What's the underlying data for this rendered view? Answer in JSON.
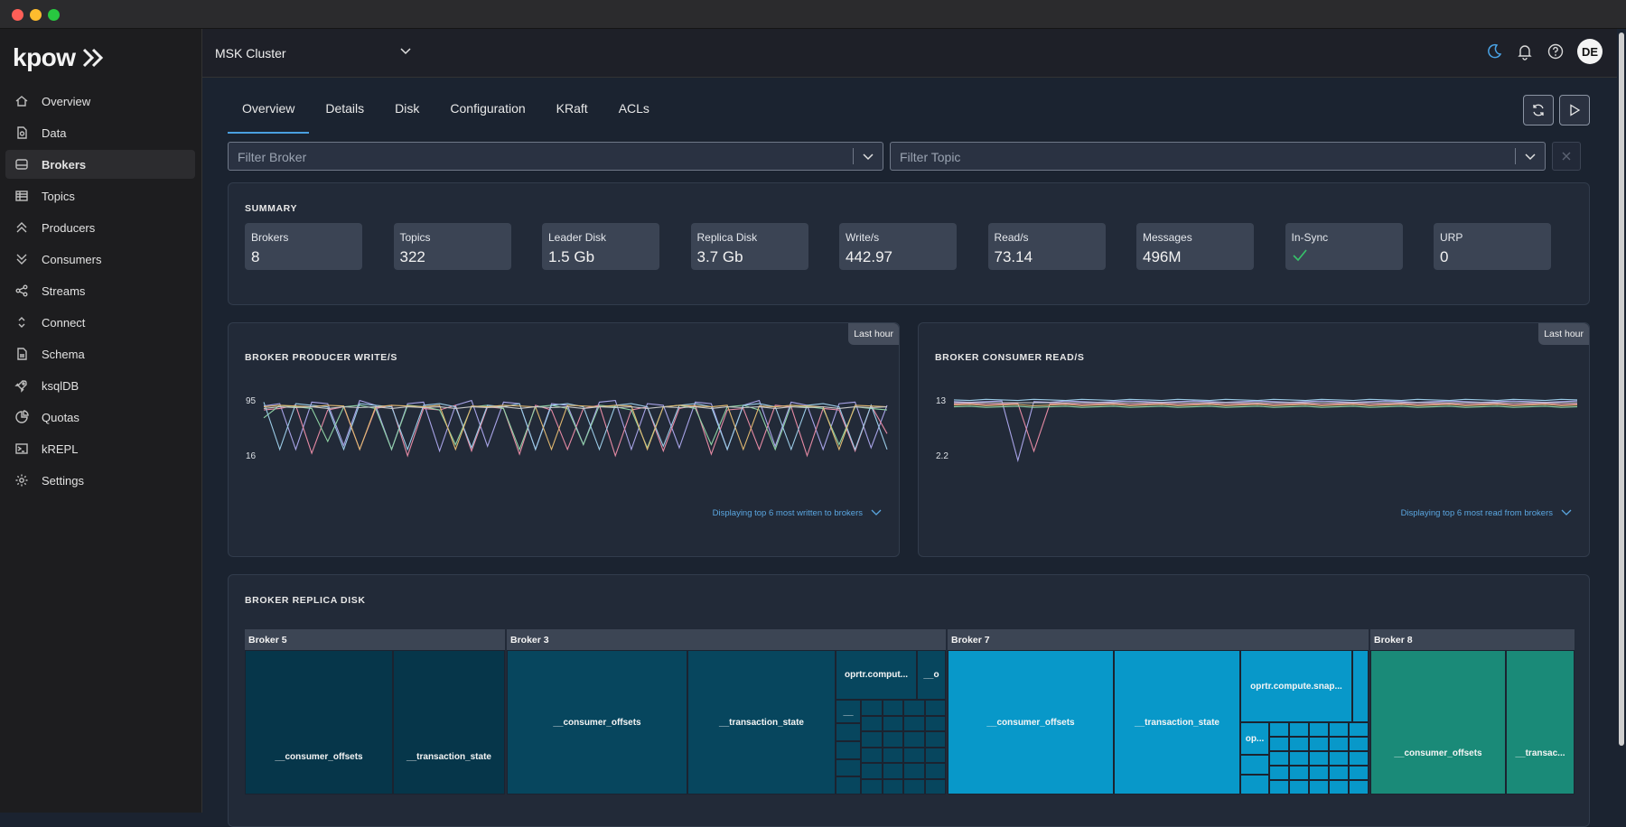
{
  "window": {
    "controls": [
      "close",
      "minimize",
      "maximize"
    ]
  },
  "app": {
    "logo": "kpow"
  },
  "sidebar": {
    "items": [
      {
        "label": "Overview",
        "icon": "home-icon"
      },
      {
        "label": "Data",
        "icon": "document-icon"
      },
      {
        "label": "Brokers",
        "icon": "server-icon",
        "active": true
      },
      {
        "label": "Topics",
        "icon": "table-icon"
      },
      {
        "label": "Producers",
        "icon": "chevrons-up-icon"
      },
      {
        "label": "Consumers",
        "icon": "chevrons-down-icon"
      },
      {
        "label": "Streams",
        "icon": "share-icon"
      },
      {
        "label": "Connect",
        "icon": "chevron-updown-icon"
      },
      {
        "label": "Schema",
        "icon": "file-icon"
      },
      {
        "label": "ksqlDB",
        "icon": "rocket-icon"
      },
      {
        "label": "Quotas",
        "icon": "pie-icon"
      },
      {
        "label": "kREPL",
        "icon": "terminal-icon"
      },
      {
        "label": "Settings",
        "icon": "gear-icon"
      }
    ]
  },
  "header": {
    "cluster": "MSK Cluster",
    "avatar": "DE"
  },
  "tabs": [
    "Overview",
    "Details",
    "Disk",
    "Configuration",
    "KRaft",
    "ACLs"
  ],
  "filters": {
    "broker_placeholder": "Filter Broker",
    "topic_placeholder": "Filter Topic"
  },
  "summary": {
    "title": "SUMMARY",
    "stats": [
      {
        "label": "Brokers",
        "value": "8"
      },
      {
        "label": "Topics",
        "value": "322"
      },
      {
        "label": "Leader Disk",
        "value": "1.5 Gb"
      },
      {
        "label": "Replica Disk",
        "value": "3.7 Gb"
      },
      {
        "label": "Write/s",
        "value": "442.97"
      },
      {
        "label": "Read/s",
        "value": "73.14"
      },
      {
        "label": "Messages",
        "value": "496M"
      },
      {
        "label": "In-Sync",
        "value": "",
        "icon": "check-icon"
      },
      {
        "label": "URP",
        "value": "0"
      }
    ]
  },
  "producer_chart": {
    "title": "BROKER PRODUCER WRITE/S",
    "badge": "Last hour",
    "ymax": "95",
    "ymin": "16",
    "footer": "Displaying top 6 most written to brokers"
  },
  "consumer_chart": {
    "title": "BROKER CONSUMER READ/S",
    "badge": "Last hour",
    "ymax": "13",
    "ymin": "2.2",
    "footer": "Displaying top 6 most read from brokers"
  },
  "replica_disk": {
    "title": "BROKER REPLICA DISK",
    "brokers": [
      {
        "name": "Broker 5",
        "color": "#06364a",
        "cells": [
          "__consumer_offsets",
          "__transaction_state"
        ]
      },
      {
        "name": "Broker 3",
        "color": "#07465e",
        "cells": [
          "__consumer_offsets",
          "__transaction_state",
          "oprtr.comput...",
          "__o",
          "__"
        ]
      },
      {
        "name": "Broker 7",
        "color": "#0898c9",
        "cells": [
          "__consumer_offsets",
          "__transaction_state",
          "oprtr.compute.snap...",
          "op..."
        ]
      },
      {
        "name": "Broker 8",
        "color": "#1a8a78",
        "cells": [
          "__consumer_offsets",
          "__transac..."
        ]
      }
    ]
  },
  "chart_data": [
    {
      "type": "line",
      "title": "BROKER PRODUCER WRITE/S",
      "ylim": [
        16,
        95
      ],
      "series": [
        {
          "color": "#a7a3e6",
          "values": [
            85,
            88,
            30,
            90,
            88,
            35,
            92,
            86,
            30,
            88,
            90,
            28,
            86,
            92,
            34,
            90,
            88,
            30,
            88,
            86,
            36,
            90,
            92,
            30,
            88,
            86,
            32,
            90,
            88,
            30,
            86,
            92,
            34,
            90,
            86,
            30,
            88,
            90,
            32,
            86
          ]
        },
        {
          "color": "#e58aa4",
          "values": [
            80,
            82,
            86,
            25,
            80,
            84,
            30,
            82,
            86,
            22,
            82,
            80,
            86,
            28,
            84,
            82,
            24,
            86,
            80,
            30,
            82,
            86,
            22,
            80,
            84,
            28,
            82,
            86,
            24,
            80,
            82,
            30,
            86,
            84,
            22,
            82,
            80,
            28,
            86,
            50
          ]
        },
        {
          "color": "#8ed1a4",
          "values": [
            70,
            86,
            84,
            82,
            40,
            84,
            86,
            82,
            30,
            86,
            84,
            80,
            36,
            84,
            86,
            82,
            30,
            84,
            86,
            82,
            36,
            86,
            84,
            80,
            32,
            84,
            86,
            82,
            36,
            84,
            86,
            80,
            30,
            86,
            84,
            82,
            36,
            84,
            82,
            80
          ]
        },
        {
          "color": "#9bcbe6",
          "values": [
            90,
            30,
            88,
            86,
            84,
            30,
            88,
            86,
            84,
            30,
            86,
            88,
            84,
            32,
            86,
            84,
            88,
            30,
            86,
            88,
            84,
            30,
            86,
            88,
            84,
            34,
            86,
            88,
            84,
            30,
            86,
            88,
            84,
            30,
            86,
            88,
            84,
            30,
            86,
            30
          ]
        },
        {
          "color": "#e0b870",
          "values": [
            84,
            86,
            85,
            84,
            86,
            85,
            30,
            84,
            86,
            85,
            84,
            86,
            30,
            85,
            84,
            86,
            85,
            84,
            30,
            86,
            85,
            84,
            86,
            85,
            30,
            84,
            86,
            85,
            84,
            86,
            30,
            85,
            84,
            86,
            85,
            84,
            30,
            86,
            85,
            84
          ]
        },
        {
          "color": "#c7c7c7",
          "values": [
            82,
            84,
            83,
            84,
            82,
            84,
            83,
            84,
            82,
            84,
            83,
            84,
            82,
            84,
            83,
            84,
            82,
            84,
            83,
            84,
            82,
            84,
            83,
            84,
            82,
            84,
            83,
            84,
            82,
            84,
            83,
            84,
            82,
            84,
            83,
            84,
            82,
            84,
            83,
            84
          ]
        }
      ]
    },
    {
      "type": "line",
      "title": "BROKER CONSUMER READ/S",
      "ylim": [
        2.2,
        13
      ],
      "series": [
        {
          "color": "#a7a3e6",
          "values": [
            12.4,
            12.3,
            12.4,
            12.5,
            2.2,
            12.4,
            12.3,
            12.5,
            12.4,
            12.3,
            12.4,
            12.5,
            12.4,
            12.3,
            12.4,
            12.5,
            12.4,
            12.3,
            12.4,
            12.5,
            12.4,
            12.3,
            12.4,
            12.5,
            12.4,
            12.3,
            12.4,
            12.5,
            12.4,
            12.3,
            12.4,
            12.5,
            12.4,
            12.3,
            12.4,
            12.5,
            12.4,
            12.3,
            12.4,
            12.5
          ]
        },
        {
          "color": "#e58aa4",
          "values": [
            12.0,
            12.1,
            11.9,
            12.0,
            12.1,
            3.8,
            12.0,
            12.1,
            11.9,
            12.0,
            12.1,
            11.9,
            12.0,
            12.1,
            11.9,
            12.0,
            12.1,
            11.9,
            12.0,
            12.1,
            11.9,
            12.0,
            12.1,
            11.9,
            12.0,
            12.1,
            11.9,
            12.0,
            12.1,
            11.9,
            12.0,
            12.1,
            11.9,
            12.0,
            12.1,
            11.9,
            12.0,
            12.1,
            11.9,
            12.0
          ]
        },
        {
          "color": "#8ed1a4",
          "values": [
            11.5,
            11.6,
            11.4,
            11.5,
            11.6,
            11.4,
            11.5,
            11.6,
            11.4,
            11.5,
            11.6,
            11.4,
            11.5,
            11.6,
            11.4,
            11.5,
            11.6,
            11.4,
            11.5,
            11.6,
            11.4,
            11.5,
            11.6,
            11.4,
            11.5,
            11.6,
            11.4,
            11.5,
            11.6,
            11.4,
            11.5,
            11.6,
            11.4,
            11.5,
            11.6,
            11.4,
            11.5,
            11.6,
            11.4,
            11.5
          ]
        },
        {
          "color": "#9bcbe6",
          "values": [
            12.7,
            12.6,
            12.8,
            12.7,
            12.6,
            12.8,
            12.7,
            12.6,
            12.8,
            12.7,
            12.6,
            12.8,
            12.7,
            12.6,
            12.8,
            12.7,
            12.6,
            12.8,
            12.7,
            12.6,
            12.8,
            12.7,
            12.6,
            12.8,
            12.7,
            12.6,
            12.8,
            12.7,
            12.6,
            12.8,
            12.7,
            12.6,
            12.8,
            12.7,
            12.6,
            12.8,
            12.7,
            12.6,
            12.8,
            12.7
          ]
        },
        {
          "color": "#e0b870",
          "values": [
            11.8,
            11.9,
            11.7,
            11.8,
            11.9,
            11.7,
            11.8,
            11.9,
            11.7,
            11.8,
            11.9,
            11.7,
            11.8,
            11.9,
            11.7,
            11.8,
            11.9,
            11.7,
            11.8,
            11.9,
            11.7,
            11.8,
            11.9,
            11.7,
            11.8,
            11.9,
            11.7,
            11.8,
            11.9,
            11.7,
            11.8,
            11.9,
            11.7,
            11.8,
            11.9,
            11.7,
            11.8,
            11.9,
            11.7,
            11.8
          ]
        },
        {
          "color": "#c7c7c7",
          "values": [
            12.2,
            12.2,
            12.2,
            12.2,
            12.2,
            12.2,
            12.2,
            12.2,
            12.2,
            12.2,
            12.2,
            12.2,
            12.2,
            12.2,
            12.2,
            12.2,
            12.2,
            12.2,
            12.2,
            12.2,
            12.2,
            12.2,
            12.2,
            12.2,
            12.2,
            12.2,
            12.2,
            12.2,
            12.2,
            12.2,
            12.2,
            12.2,
            12.2,
            12.2,
            12.2,
            12.2,
            12.2,
            12.2,
            12.2,
            12.2
          ]
        }
      ]
    }
  ]
}
